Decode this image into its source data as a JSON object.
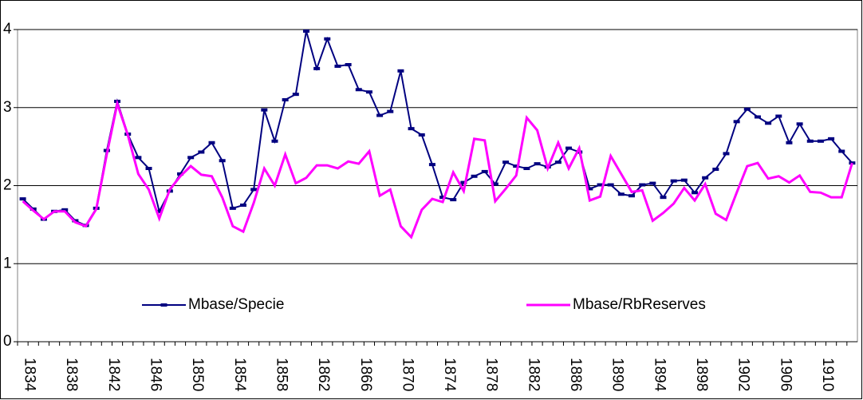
{
  "chart_data": {
    "type": "line",
    "categories": [
      "1834",
      null,
      null,
      null,
      "1838",
      null,
      null,
      null,
      "1842",
      null,
      null,
      null,
      "1846",
      null,
      null,
      null,
      "1850",
      null,
      null,
      null,
      "1854",
      null,
      null,
      null,
      "1858",
      null,
      null,
      null,
      "1862",
      null,
      null,
      null,
      "1866",
      null,
      null,
      null,
      "1870",
      null,
      null,
      null,
      "1874",
      null,
      null,
      null,
      "1878",
      null,
      null,
      null,
      "1882",
      null,
      null,
      null,
      "1886",
      null,
      null,
      null,
      "1890",
      null,
      null,
      null,
      "1894",
      null,
      null,
      null,
      "1898",
      null,
      null,
      null,
      "1902",
      null,
      null,
      null,
      "1906",
      null,
      null,
      null,
      "1910",
      null,
      null,
      null
    ],
    "series": [
      {
        "name": "Mbase/Specie",
        "color": "#000080",
        "markers": true,
        "values": [
          1.83,
          1.7,
          1.57,
          1.67,
          1.69,
          1.55,
          1.49,
          1.71,
          2.45,
          3.08,
          2.66,
          2.36,
          2.22,
          1.67,
          1.93,
          2.15,
          2.36,
          2.43,
          2.55,
          2.32,
          1.71,
          1.75,
          1.95,
          2.97,
          2.57,
          3.1,
          3.17,
          3.98,
          3.5,
          3.88,
          3.53,
          3.55,
          3.23,
          3.2,
          2.9,
          2.95,
          3.47,
          2.73,
          2.65,
          2.27,
          1.85,
          1.82,
          2.04,
          2.12,
          2.18,
          2.02,
          2.3,
          2.25,
          2.22,
          2.28,
          2.24,
          2.3,
          2.48,
          2.43,
          1.96,
          2.01,
          2.01,
          1.89,
          1.87,
          2.01,
          2.03,
          1.85,
          2.06,
          2.07,
          1.91,
          2.1,
          2.21,
          2.41,
          2.82,
          2.98,
          2.88,
          2.8,
          2.89,
          2.55,
          2.79,
          2.57,
          2.57,
          2.6,
          2.44,
          2.29
        ]
      },
      {
        "name": "Mbase/RbReserves",
        "color": "#ff00ff",
        "markers": false,
        "values": [
          1.8,
          1.68,
          1.57,
          1.67,
          1.67,
          1.53,
          1.48,
          1.7,
          2.4,
          3.05,
          2.65,
          2.15,
          1.95,
          1.58,
          1.95,
          2.12,
          2.25,
          2.14,
          2.12,
          1.85,
          1.48,
          1.41,
          1.78,
          2.22,
          2.0,
          2.4,
          2.03,
          2.1,
          2.26,
          2.26,
          2.22,
          2.31,
          2.28,
          2.44,
          1.87,
          1.95,
          1.48,
          1.34,
          1.69,
          1.83,
          1.79,
          2.17,
          1.93,
          2.6,
          2.58,
          1.8,
          1.96,
          2.13,
          2.87,
          2.71,
          2.22,
          2.55,
          2.22,
          2.48,
          1.81,
          1.86,
          2.38,
          2.15,
          1.92,
          1.94,
          1.55,
          1.65,
          1.77,
          1.97,
          1.81,
          2.02,
          1.64,
          1.56,
          1.91,
          2.25,
          2.29,
          2.09,
          2.12,
          2.04,
          2.13,
          1.92,
          1.91,
          1.85,
          1.85,
          2.29
        ]
      }
    ],
    "ylim": [
      0,
      4
    ],
    "yticks": [
      0,
      1,
      2,
      3,
      4
    ],
    "grid": true,
    "legend": "lower center"
  }
}
